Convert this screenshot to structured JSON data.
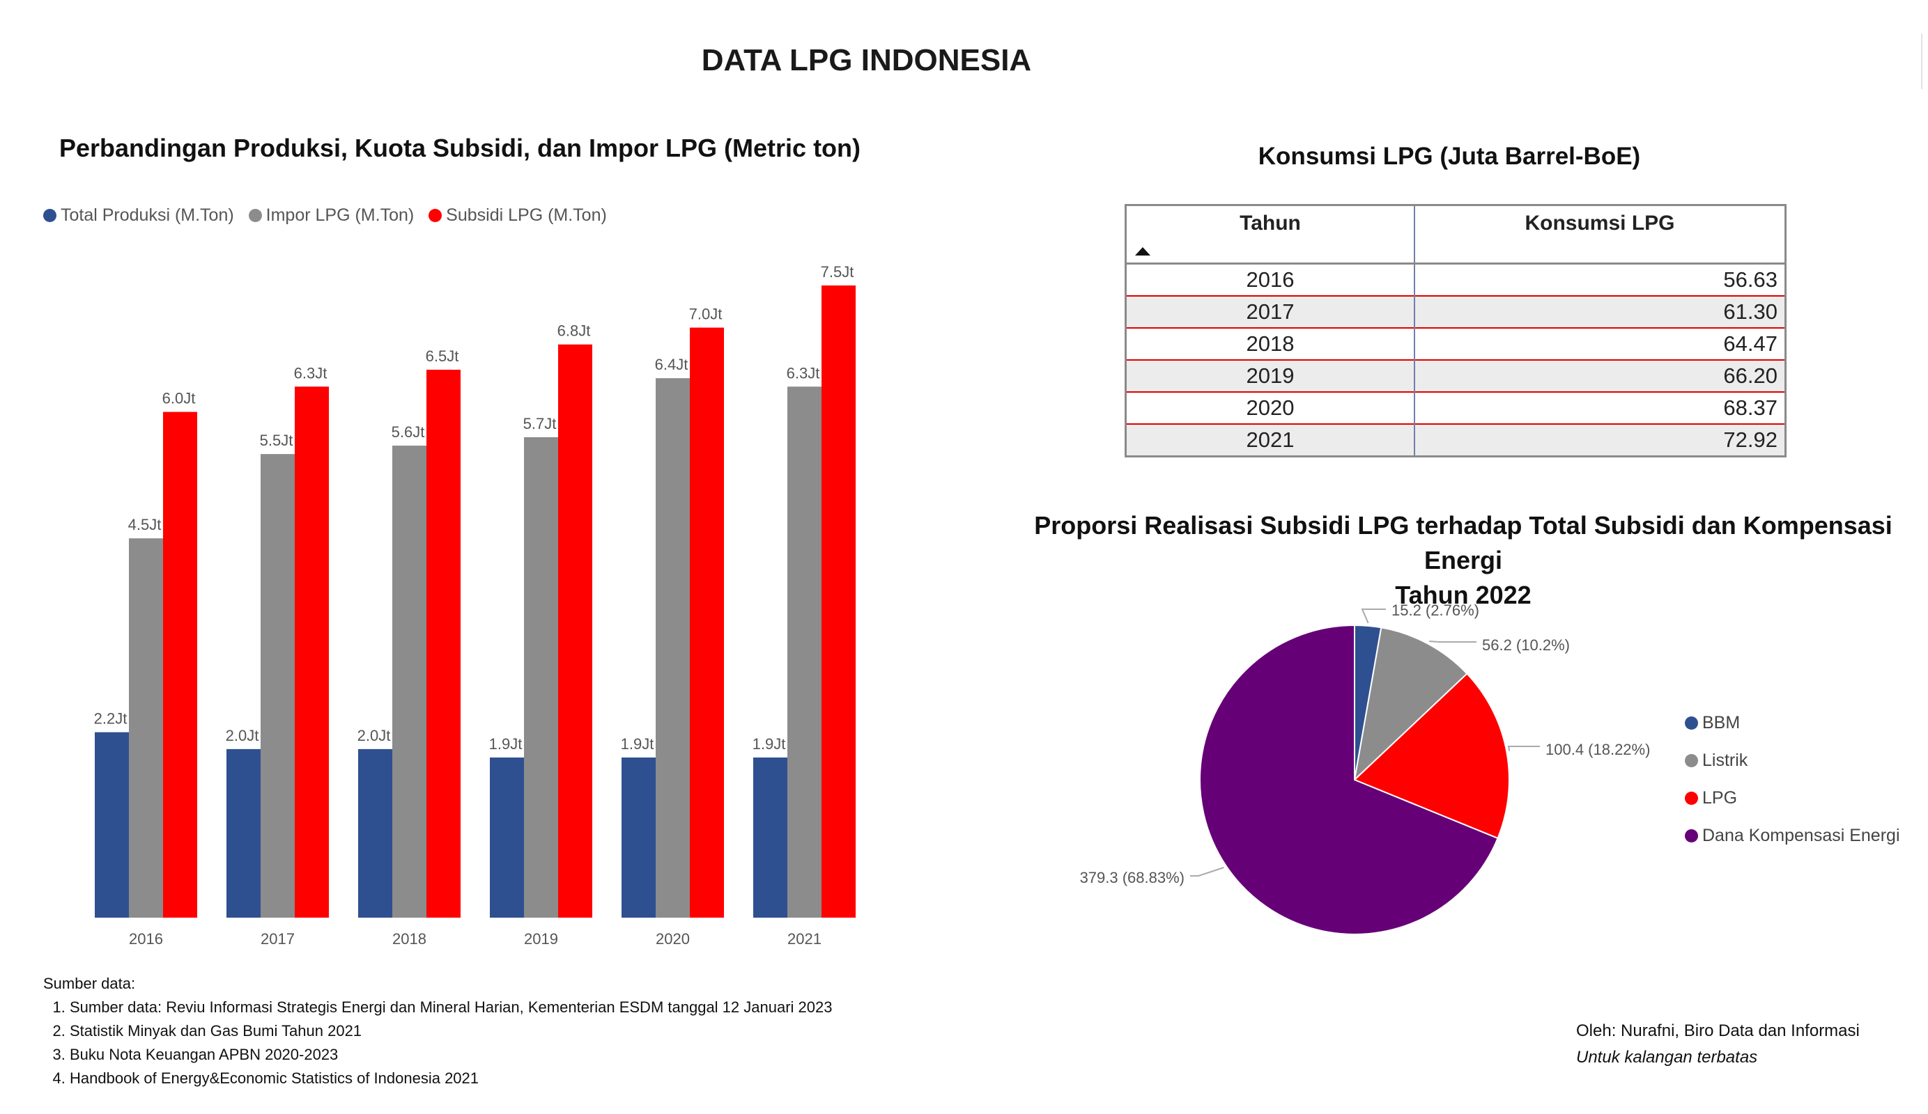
{
  "page_title": "DATA LPG INDONESIA",
  "bar_panel": {
    "title": "Perbandingan Produksi, Kuota Subsidi, dan Impor LPG (Metric ton)"
  },
  "table_panel": {
    "title": "Konsumsi LPG (Juta Barrel-BoE)",
    "headers": [
      "Tahun",
      "Konsumsi LPG"
    ],
    "rows": [
      {
        "year": "2016",
        "value": "56.63"
      },
      {
        "year": "2017",
        "value": "61.30"
      },
      {
        "year": "2018",
        "value": "64.47"
      },
      {
        "year": "2019",
        "value": "66.20"
      },
      {
        "year": "2020",
        "value": "68.37"
      },
      {
        "year": "2021",
        "value": "72.92"
      }
    ],
    "sort_icon": "sort-ascending-icon"
  },
  "pie_panel": {
    "title_line1": "Proporsi Realisasi Subsidi LPG terhadap Total Subsidi dan Kompensasi Energi",
    "title_line2": "Tahun 2022"
  },
  "chart_data": [
    {
      "type": "bar",
      "title": "Perbandingan Produksi, Kuota Subsidi, dan Impor LPG (Metric ton)",
      "categories": [
        "2016",
        "2017",
        "2018",
        "2019",
        "2020",
        "2021"
      ],
      "series": [
        {
          "name": "Total Produksi (M.Ton)",
          "color": "#2f5090",
          "values": [
            2.2,
            2.0,
            2.0,
            1.9,
            1.9,
            1.9
          ],
          "labels": [
            "2.2Jt",
            "2.0Jt",
            "2.0Jt",
            "1.9Jt",
            "1.9Jt",
            "1.9Jt"
          ]
        },
        {
          "name": "Impor LPG (M.Ton)",
          "color": "#8c8c8c",
          "values": [
            4.5,
            5.5,
            5.6,
            5.7,
            6.4,
            6.3
          ],
          "labels": [
            "4.5Jt",
            "5.5Jt",
            "5.6Jt",
            "5.7Jt",
            "6.4Jt",
            "6.3Jt"
          ]
        },
        {
          "name": "Subsidi LPG (M.Ton)",
          "color": "#ff0000",
          "values": [
            6.0,
            6.3,
            6.5,
            6.8,
            7.0,
            7.5
          ],
          "labels": [
            "6.0Jt",
            "6.3Jt",
            "6.5Jt",
            "6.8Jt",
            "7.0Jt",
            "7.5Jt"
          ]
        }
      ],
      "ylim": [
        0,
        7.5
      ],
      "legend_position": "top-left",
      "grid": false
    },
    {
      "type": "pie",
      "title": "Proporsi Realisasi Subsidi LPG terhadap Total Subsidi dan Kompensasi Energi Tahun 2022",
      "slices": [
        {
          "name": "BBM",
          "value": 15.2,
          "percent": 2.76,
          "label": "15.2 (2.76%)",
          "color": "#2f5090"
        },
        {
          "name": "Listrik",
          "value": 56.2,
          "percent": 10.2,
          "label": "56.2 (10.2%)",
          "color": "#8c8c8c"
        },
        {
          "name": "LPG",
          "value": 100.4,
          "percent": 18.22,
          "label": "100.4 (18.22%)",
          "color": "#ff0000"
        },
        {
          "name": "Dana Kompensasi Energi",
          "value": 379.3,
          "percent": 68.83,
          "label": "379.3 (68.83%)",
          "color": "#660077"
        }
      ],
      "legend_position": "right"
    }
  ],
  "sources": {
    "heading": "Sumber data:",
    "items": [
      "Sumber data: Reviu Informasi Strategis Energi dan Mineral Harian, Kementerian ESDM tanggal 12 Januari 2023",
      "Statistik Minyak dan Gas Bumi Tahun 2021",
      "Buku Nota Keuangan APBN 2020-2023",
      "Handbook of Energy&Economic Statistics of Indonesia 2021"
    ]
  },
  "credits": {
    "author": "Oleh: Nurafni, Biro Data dan Informasi",
    "note": "Untuk kalangan terbatas"
  }
}
